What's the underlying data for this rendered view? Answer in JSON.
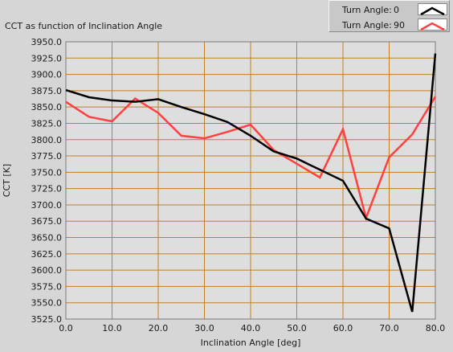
{
  "window": {
    "title": "CCT as function of Inclination Angle"
  },
  "legend": {
    "items": [
      {
        "label": "Turn Angle:",
        "value": "0",
        "color": "#000000"
      },
      {
        "label": "Turn Angle:",
        "value": "90",
        "color": "#ff4040"
      }
    ]
  },
  "colors": {
    "plot_background": "#dedede",
    "grid": "#c08020",
    "panel": "#d6d6d6"
  },
  "chart_data": {
    "type": "line",
    "title": "CCT as function of Inclination Angle",
    "xlabel": "Inclination Angle [deg]",
    "ylabel": "CCT [K]",
    "xlim": [
      0,
      80
    ],
    "ylim": [
      3525,
      3950
    ],
    "grid": true,
    "legend_position": "top-right",
    "x_ticks": [
      0,
      10,
      20,
      30,
      40,
      50,
      60,
      70,
      80
    ],
    "x_tick_labels": [
      "0.0",
      "10.0",
      "20.0",
      "30.0",
      "40.0",
      "50.0",
      "60.0",
      "70.0",
      "80.0"
    ],
    "y_ticks": [
      3525,
      3550,
      3575,
      3600,
      3625,
      3650,
      3675,
      3700,
      3725,
      3750,
      3775,
      3800,
      3825,
      3850,
      3875,
      3900,
      3925,
      3950
    ],
    "y_tick_labels": [
      "3525.0",
      "3550.0",
      "3575.0",
      "3600.0",
      "3625.0",
      "3650.0",
      "3675.0",
      "3700.0",
      "3725.0",
      "3750.0",
      "3775.0",
      "3800.0",
      "3825.0",
      "3850.0",
      "3875.0",
      "3900.0",
      "3925.0",
      "3950.0"
    ],
    "x": [
      0,
      5,
      10,
      15,
      20,
      25,
      30,
      35,
      40,
      45,
      50,
      55,
      60,
      65,
      70,
      75,
      80
    ],
    "series": [
      {
        "name": "Turn Angle: 0",
        "color": "#000000",
        "values": [
          3876,
          3865,
          3860,
          3858,
          3862,
          3850,
          3839,
          3827,
          3806,
          3782,
          3771,
          3754,
          3737,
          3679,
          3664,
          3536,
          3932
        ]
      },
      {
        "name": "Turn Angle: 90",
        "color": "#ff4040",
        "values": [
          3858,
          3835,
          3828,
          3863,
          3841,
          3806,
          3802,
          3812,
          3823,
          3784,
          3763,
          3742,
          3816,
          3680,
          3773,
          3808,
          3866
        ]
      }
    ]
  }
}
